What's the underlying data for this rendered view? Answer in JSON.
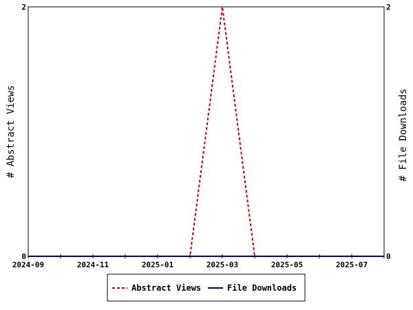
{
  "chart_data": {
    "type": "line",
    "x": [
      "2024-09",
      "2024-10",
      "2024-11",
      "2024-12",
      "2025-01",
      "2025-02",
      "2025-03",
      "2025-04",
      "2025-05",
      "2025-06",
      "2025-07",
      "2025-08"
    ],
    "x_tick_labels": [
      "2024-09",
      "2024-11",
      "2025-01",
      "2025-03",
      "2025-05",
      "2025-07"
    ],
    "series": [
      {
        "name": "Abstract Views",
        "axis": "left",
        "color": "#cc0000",
        "dash": true,
        "values": [
          0,
          0,
          0,
          0,
          0,
          0,
          2,
          0,
          0,
          0,
          0,
          0
        ]
      },
      {
        "name": "File Downloads",
        "axis": "right",
        "color": "#000099",
        "dash": false,
        "values": [
          0,
          0,
          0,
          0,
          0,
          0,
          0,
          0,
          0,
          0,
          0,
          0
        ]
      }
    ],
    "ylabel_left": "# Abstract Views",
    "ylabel_right": "# File Downloads",
    "ylim_left": [
      0,
      2
    ],
    "ylim_right": [
      0,
      2
    ],
    "y_ticks_left": [
      "0",
      "2"
    ],
    "y_ticks_right": [
      "0",
      "2"
    ],
    "grid": false,
    "legend_position": "bottom-center"
  }
}
